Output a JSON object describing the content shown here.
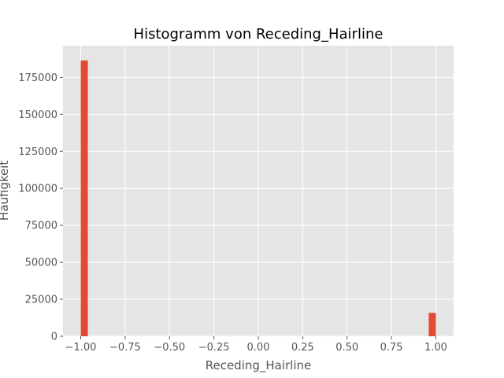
{
  "chart_data": {
    "type": "bar",
    "title": "Histogramm von Receding_Hairline",
    "xlabel": "Receding_Hairline",
    "ylabel": "Häufigkeit",
    "xlim": [
      -1.1,
      1.1
    ],
    "ylim": [
      0,
      196500
    ],
    "x_ticks": [
      -1.0,
      -0.75,
      -0.5,
      -0.25,
      0.0,
      0.25,
      0.5,
      0.75,
      1.0
    ],
    "x_tick_labels": [
      "−1.00",
      "−0.75",
      "−0.50",
      "−0.25",
      "0.00",
      "0.25",
      "0.50",
      "0.75",
      "1.00"
    ],
    "y_ticks": [
      0,
      25000,
      50000,
      75000,
      100000,
      125000,
      150000,
      175000
    ],
    "y_tick_labels": [
      "0",
      "25000",
      "50000",
      "75000",
      "100000",
      "125000",
      "150000",
      "175000"
    ],
    "bin_width": 0.04,
    "bars": [
      {
        "x_start": -1.0,
        "x_end": -0.96,
        "value": 186500
      },
      {
        "x_start": 0.96,
        "x_end": 1.0,
        "value": 15800
      }
    ],
    "grid": true,
    "colors": {
      "bar": "#E24A33",
      "plot_background": "#E5E5E5",
      "grid": "#FFFFFF"
    }
  }
}
